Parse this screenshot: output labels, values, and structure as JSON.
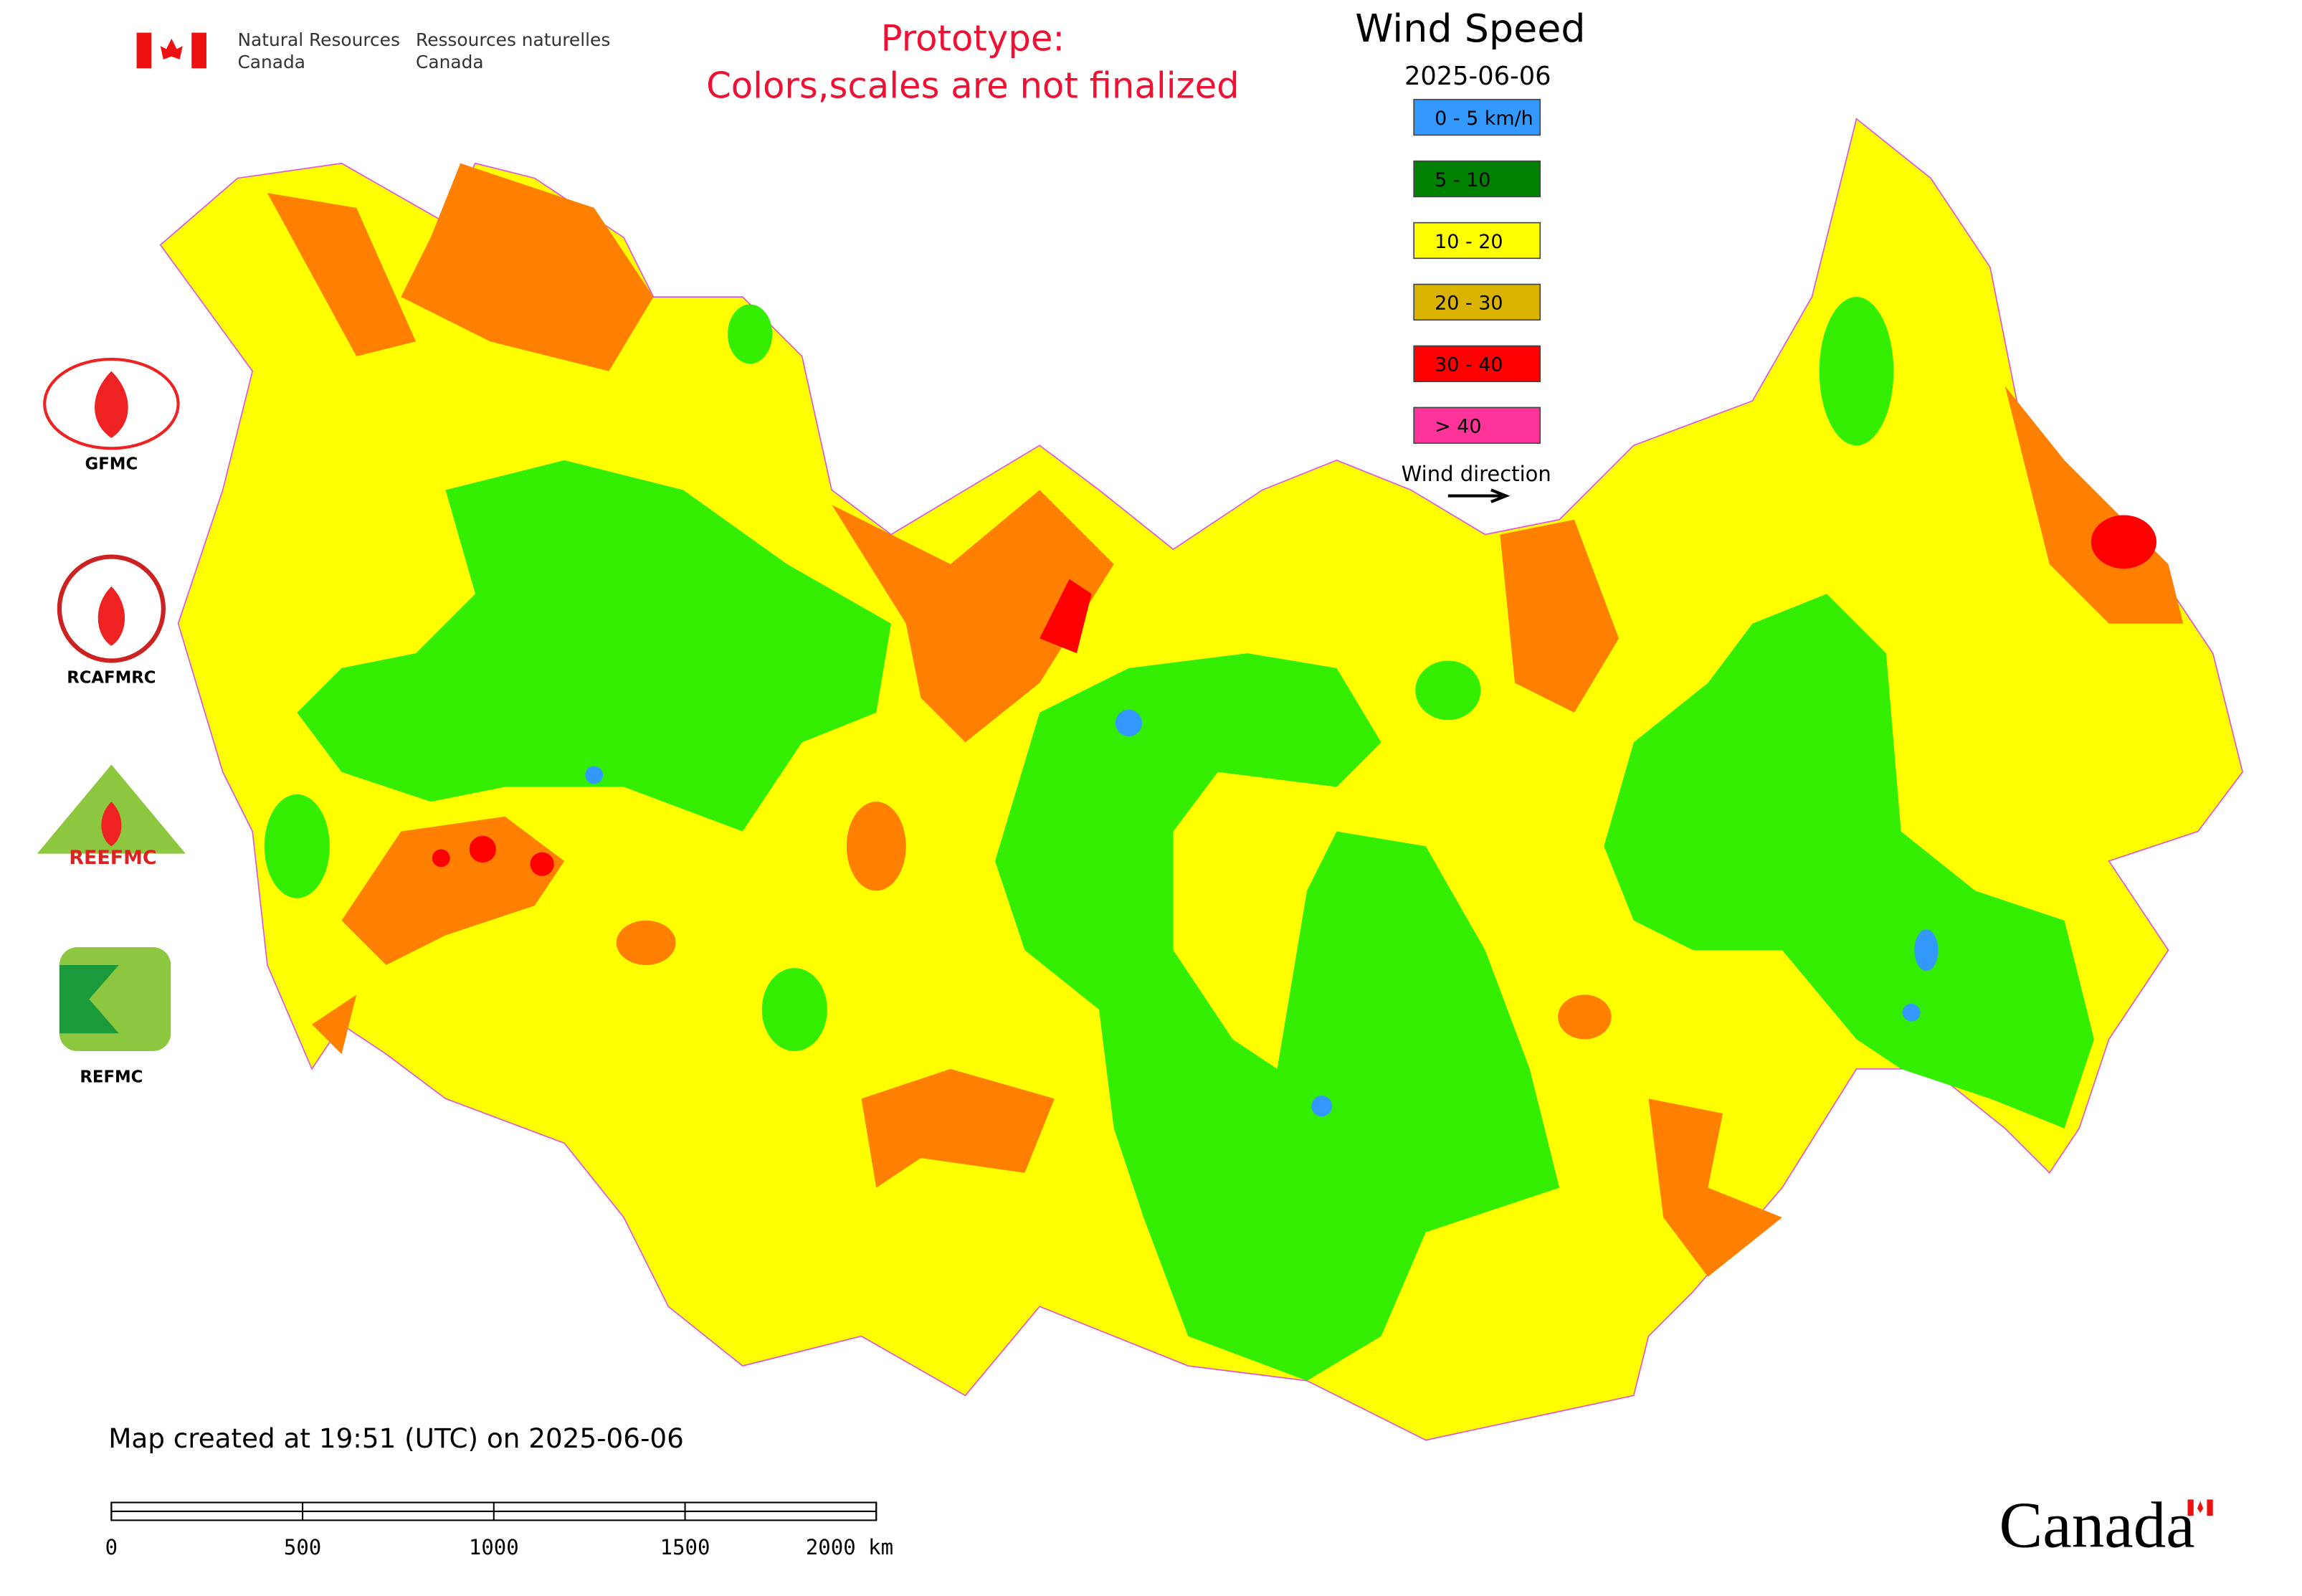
{
  "header": {
    "agency_en": [
      "Natural Resources",
      "Canada"
    ],
    "agency_fr": [
      "Ressources naturelles",
      "Canada"
    ]
  },
  "notice": [
    "Prototype:",
    "Colors,scales are not finalized"
  ],
  "legend": {
    "title": "Wind Speed",
    "date": "2025-06-06",
    "items": [
      {
        "label": "0 - 5 km/h",
        "color": "#3399ff"
      },
      {
        "label": "5 - 10",
        "color": "#008000"
      },
      {
        "label": "10 - 20",
        "color": "#ffff00"
      },
      {
        "label": "20 - 30",
        "color": "#d9b300"
      },
      {
        "label": "30 - 40",
        "color": "#ff0000"
      },
      {
        "label": "> 40",
        "color": "#ff3399"
      }
    ],
    "direction_label": "Wind direction"
  },
  "logos": [
    "GFMC",
    "RCAFMRC",
    "REEFMC",
    "REFMC"
  ],
  "footer": {
    "created": "Map created at 19:51 (UTC) on 2025-06-06",
    "scale": {
      "ticks": [
        0,
        500,
        1000,
        1500,
        {
          "value": 2000,
          "label": "2000 km"
        }
      ]
    },
    "wordmark": "Canada"
  }
}
